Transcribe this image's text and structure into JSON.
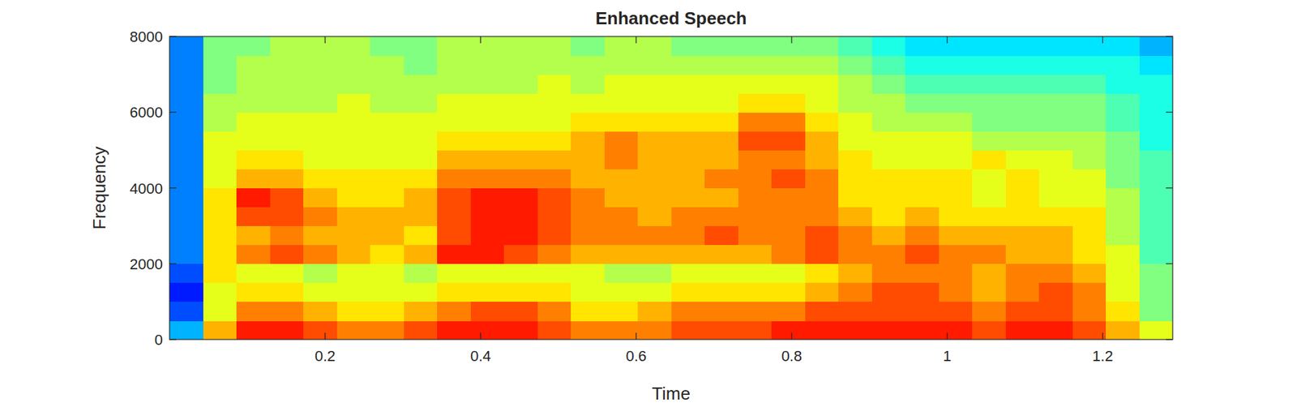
{
  "chart_data": {
    "type": "heatmap",
    "title": "Enhanced Speech",
    "x_label": "Time",
    "y_label": "Frequency",
    "xlim": [
      0,
      1.29
    ],
    "xticks": [
      0.2,
      0.4,
      0.6,
      0.8,
      1,
      1.2
    ],
    "ylim": [
      0,
      8000
    ],
    "yticks": [
      0,
      2000,
      4000,
      6000,
      8000
    ],
    "clim": [
      0,
      10
    ],
    "x": [
      0.0215,
      0.0645,
      0.1075,
      0.1505,
      0.1935,
      0.2365,
      0.2795,
      0.3225,
      0.3655,
      0.4085,
      0.4515,
      0.4945,
      0.5375,
      0.5805,
      0.6235,
      0.6665,
      0.7095,
      0.7525,
      0.7955,
      0.8385,
      0.8815,
      0.9245,
      0.9675,
      1.0105,
      1.0535,
      1.0965,
      1.1395,
      1.1825,
      1.2255,
      1.2685
    ],
    "y": [
      250,
      750,
      1250,
      1750,
      2250,
      2750,
      3250,
      3750,
      4250,
      4750,
      5250,
      5750,
      6250,
      6750,
      7250,
      7750
    ],
    "values": [
      [
        3,
        2,
        1.5,
        2,
        2.5,
        2.5,
        2.5,
        2.5,
        2.5,
        2.5,
        2.5,
        2.5,
        2.5,
        2.5,
        2.5,
        2.5
      ],
      [
        7,
        6,
        6,
        6.5,
        6.5,
        6.5,
        6.5,
        6.5,
        6,
        6,
        6,
        5.5,
        5.5,
        5,
        5,
        5
      ],
      [
        8.5,
        7.5,
        6.5,
        6,
        7.5,
        7,
        8,
        8.5,
        7,
        6.5,
        6,
        6,
        5.5,
        5.5,
        5.5,
        5
      ],
      [
        8.5,
        7.5,
        6.5,
        6,
        8,
        7.5,
        8,
        8,
        7,
        6.5,
        6,
        6,
        5.5,
        5.5,
        5.5,
        5.5
      ],
      [
        8,
        7,
        6,
        5.5,
        7.5,
        7,
        7.5,
        7,
        6.5,
        6,
        6,
        6,
        5.5,
        5.5,
        5.5,
        5.5
      ],
      [
        7.5,
        6.5,
        6,
        6,
        7,
        7,
        7,
        6.5,
        6.5,
        6,
        6,
        6,
        6,
        5.5,
        5.5,
        5.5
      ],
      [
        7.5,
        6.5,
        6,
        6,
        6.5,
        7,
        7,
        6.5,
        6.5,
        6,
        6,
        6,
        5.5,
        5.5,
        5.5,
        5
      ],
      [
        8,
        7,
        6,
        5.5,
        7,
        6.5,
        7,
        7,
        6.5,
        6,
        6,
        6,
        5.5,
        5.5,
        5,
        5
      ],
      [
        8.5,
        7.5,
        6.5,
        6,
        8.5,
        8,
        8,
        8,
        7.5,
        7,
        6.5,
        6,
        6,
        5.5,
        5.5,
        5.5
      ],
      [
        8.5,
        8,
        6.5,
        6,
        8.5,
        8.5,
        8.5,
        8.5,
        7.5,
        7,
        6.5,
        6,
        6,
        5.5,
        5.5,
        5.5
      ],
      [
        8.5,
        8,
        6.5,
        6,
        8,
        8.5,
        8.5,
        8.5,
        7.5,
        7,
        6.5,
        6,
        6,
        5.5,
        5.5,
        5.5
      ],
      [
        8,
        7.5,
        6.5,
        6,
        7.5,
        8,
        8,
        8,
        7.5,
        7,
        6.5,
        6,
        6,
        6,
        5.5,
        5.5
      ],
      [
        7.5,
        6.5,
        6,
        6,
        7,
        7.5,
        7.5,
        7.5,
        7,
        7,
        7,
        6.5,
        6,
        5.5,
        5.5,
        5
      ],
      [
        7.5,
        6.5,
        6,
        5.5,
        7,
        7.5,
        7.5,
        7,
        7,
        7.5,
        7.5,
        6.5,
        6,
        6,
        5.5,
        5.5
      ],
      [
        7.5,
        7,
        6,
        5.5,
        7,
        7.5,
        7,
        7,
        7,
        7,
        7,
        6.5,
        6,
        6,
        5.5,
        5.5
      ],
      [
        8,
        7.5,
        6.5,
        6,
        7,
        7.5,
        7.5,
        7,
        7,
        7,
        7,
        6.5,
        6,
        6,
        5.5,
        5
      ],
      [
        8,
        7.5,
        6.5,
        6,
        7,
        8,
        7.5,
        7,
        7.5,
        7,
        7,
        6.5,
        6,
        6,
        5.5,
        5
      ],
      [
        8,
        7.5,
        6.5,
        6,
        7,
        7.5,
        7.5,
        7.5,
        7.5,
        7.5,
        8,
        7.5,
        6.5,
        6,
        5.5,
        5
      ],
      [
        8.5,
        7.5,
        6.5,
        6,
        7.5,
        7.5,
        7.5,
        7.5,
        8,
        7.5,
        8,
        7.5,
        6.5,
        6,
        5.5,
        5
      ],
      [
        8.5,
        8,
        7,
        6.5,
        8,
        8,
        7.5,
        7.5,
        7.5,
        7,
        7,
        6.5,
        6,
        6,
        5.5,
        5
      ],
      [
        8.5,
        8,
        7.5,
        7,
        7.5,
        7.5,
        7,
        6.5,
        6.5,
        6.5,
        6,
        6,
        5.5,
        5.5,
        5,
        4.5
      ],
      [
        8.5,
        8,
        8,
        7.5,
        7.5,
        7,
        6.5,
        6.5,
        6.5,
        6,
        6,
        5.5,
        5.5,
        5,
        4.5,
        4
      ],
      [
        8.5,
        8,
        8,
        7.5,
        8,
        7.5,
        7,
        6.5,
        6.5,
        6,
        6,
        5.5,
        5,
        4.5,
        4,
        3.5
      ],
      [
        8.5,
        8,
        7.5,
        7.5,
        7.5,
        7,
        6.5,
        6.5,
        6.5,
        6,
        6,
        5.5,
        5,
        4.5,
        4,
        3.5
      ],
      [
        8,
        7.5,
        7,
        7,
        7.5,
        7,
        6.5,
        6,
        6,
        6.5,
        5.5,
        5,
        5,
        4.5,
        4,
        3.5
      ],
      [
        8.5,
        8,
        7.5,
        7.5,
        7,
        7,
        6.5,
        6.5,
        6.5,
        6,
        5.5,
        5,
        5,
        4.5,
        4,
        3.5
      ],
      [
        8.5,
        8,
        8,
        7.5,
        7,
        7,
        6.5,
        6,
        6,
        6,
        5.5,
        5,
        5,
        4.5,
        4,
        3.5
      ],
      [
        8,
        7.5,
        7.5,
        7,
        6.5,
        6.5,
        6.5,
        6,
        6,
        5.5,
        5.5,
        5,
        5,
        4.5,
        4,
        3.5
      ],
      [
        7,
        6.5,
        6,
        6,
        6,
        5.5,
        5.5,
        5.5,
        5,
        5,
        5,
        4.5,
        4.5,
        4,
        4,
        3.5
      ],
      [
        6,
        5,
        5,
        5,
        4.5,
        4.5,
        4.5,
        4.5,
        4.5,
        4.5,
        4,
        4,
        4,
        4,
        3.5,
        3
      ]
    ]
  }
}
